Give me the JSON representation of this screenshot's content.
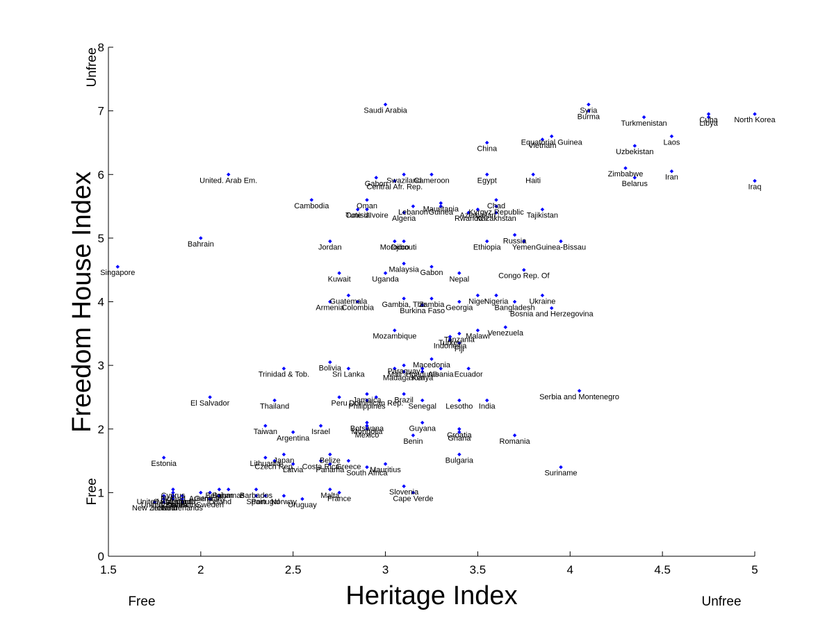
{
  "chart_data": {
    "type": "scatter",
    "title": "",
    "xlabel": "Heritage Index",
    "ylabel": "Freedom House Index",
    "xlim": [
      1.5,
      5
    ],
    "ylim": [
      0,
      8
    ],
    "x_ticks": [
      "1.5",
      "2",
      "2.5",
      "3",
      "3.5",
      "4",
      "4.5",
      "5"
    ],
    "y_ticks": [
      "0",
      "1",
      "2",
      "3",
      "4",
      "5",
      "6",
      "7",
      "8"
    ],
    "x_corner_labels": {
      "low": "Free",
      "high": "Unfree"
    },
    "y_corner_labels": {
      "low": "Free",
      "high": "Unfree"
    },
    "grid": false,
    "marker_color": "#0000ff",
    "points": [
      {
        "label": "Saudi Arabia",
        "x": 3.0,
        "y": 7.1
      },
      {
        "label": "Syria",
        "x": 4.1,
        "y": 7.1
      },
      {
        "label": "Burma",
        "x": 4.1,
        "y": 7.0
      },
      {
        "label": "Turkmenistan",
        "x": 4.4,
        "y": 6.9
      },
      {
        "label": "Cuba",
        "x": 4.75,
        "y": 6.95
      },
      {
        "label": "Libya",
        "x": 4.75,
        "y": 6.9
      },
      {
        "label": "North Korea",
        "x": 5.0,
        "y": 6.95
      },
      {
        "label": "China",
        "x": 3.55,
        "y": 6.5
      },
      {
        "label": "Equatorial Guinea",
        "x": 3.9,
        "y": 6.6
      },
      {
        "label": "Vietnam",
        "x": 3.85,
        "y": 6.55
      },
      {
        "label": "Laos",
        "x": 4.55,
        "y": 6.6
      },
      {
        "label": "Uzbekistan",
        "x": 4.35,
        "y": 6.45
      },
      {
        "label": "United. Arab Em.",
        "x": 2.15,
        "y": 6.0
      },
      {
        "label": "Swaziland",
        "x": 3.1,
        "y": 6.0
      },
      {
        "label": "Cameroon",
        "x": 3.25,
        "y": 6.0
      },
      {
        "label": "Gabon",
        "x": 2.95,
        "y": 5.95
      },
      {
        "label": "Central Afr. Rep.",
        "x": 3.05,
        "y": 5.9
      },
      {
        "label": "Egypt",
        "x": 3.55,
        "y": 6.0
      },
      {
        "label": "Haiti",
        "x": 3.8,
        "y": 6.0
      },
      {
        "label": "Zimbabwe",
        "x": 4.3,
        "y": 6.1
      },
      {
        "label": "Belarus",
        "x": 4.35,
        "y": 5.95
      },
      {
        "label": "Iran",
        "x": 4.55,
        "y": 6.05
      },
      {
        "label": "Iraq",
        "x": 5.0,
        "y": 5.9
      },
      {
        "label": "Cambodia",
        "x": 2.6,
        "y": 5.6
      },
      {
        "label": "Oman",
        "x": 2.9,
        "y": 5.6
      },
      {
        "label": "Tunisia",
        "x": 2.85,
        "y": 5.45
      },
      {
        "label": "Cote d'Ivoire",
        "x": 2.9,
        "y": 5.45
      },
      {
        "label": "Lebanon",
        "x": 3.15,
        "y": 5.5
      },
      {
        "label": "Algeria",
        "x": 3.1,
        "y": 5.4
      },
      {
        "label": "Mauritania",
        "x": 3.3,
        "y": 5.55
      },
      {
        "label": "Guinea",
        "x": 3.3,
        "y": 5.5
      },
      {
        "label": "Chad",
        "x": 3.6,
        "y": 5.6
      },
      {
        "label": "Kyrgyz Republic",
        "x": 3.6,
        "y": 5.5
      },
      {
        "label": "Azerbaijan",
        "x": 3.5,
        "y": 5.45
      },
      {
        "label": "Rwanda",
        "x": 3.45,
        "y": 5.4
      },
      {
        "label": "Kazakhstan",
        "x": 3.6,
        "y": 5.4
      },
      {
        "label": "Tajikistan",
        "x": 3.85,
        "y": 5.45
      },
      {
        "label": "Bahrain",
        "x": 2.0,
        "y": 5.0
      },
      {
        "label": "Jordan",
        "x": 2.7,
        "y": 4.95
      },
      {
        "label": "Morocco",
        "x": 3.05,
        "y": 4.95
      },
      {
        "label": "Djibouti",
        "x": 3.1,
        "y": 4.95
      },
      {
        "label": "Ethiopia",
        "x": 3.55,
        "y": 4.95
      },
      {
        "label": "Russia",
        "x": 3.7,
        "y": 5.05
      },
      {
        "label": "Yemen",
        "x": 3.75,
        "y": 4.95
      },
      {
        "label": "Guinea-Bissau",
        "x": 3.95,
        "y": 4.95
      },
      {
        "label": "Singapore",
        "x": 1.55,
        "y": 4.55
      },
      {
        "label": "Malaysia",
        "x": 3.1,
        "y": 4.6
      },
      {
        "label": "Uganda",
        "x": 3.0,
        "y": 4.45
      },
      {
        "label": "Gabon",
        "x": 3.25,
        "y": 4.55
      },
      {
        "label": "Kuwait",
        "x": 2.75,
        "y": 4.45
      },
      {
        "label": "Nepal",
        "x": 3.4,
        "y": 4.45
      },
      {
        "label": "Congo Rep. Of",
        "x": 3.75,
        "y": 4.5
      },
      {
        "label": "Guatemala",
        "x": 2.8,
        "y": 4.1
      },
      {
        "label": "Armenia",
        "x": 2.7,
        "y": 4.0
      },
      {
        "label": "Colombia",
        "x": 2.85,
        "y": 4.0
      },
      {
        "label": "Gambia, The",
        "x": 3.1,
        "y": 4.05
      },
      {
        "label": "Zambia",
        "x": 3.25,
        "y": 4.05
      },
      {
        "label": "Burkina Faso",
        "x": 3.2,
        "y": 3.95
      },
      {
        "label": "Georgia",
        "x": 3.4,
        "y": 4.0
      },
      {
        "label": "Niger",
        "x": 3.5,
        "y": 4.1
      },
      {
        "label": "Nigeria",
        "x": 3.6,
        "y": 4.1
      },
      {
        "label": "Bangladesh",
        "x": 3.7,
        "y": 4.0
      },
      {
        "label": "Ukraine",
        "x": 3.85,
        "y": 4.1
      },
      {
        "label": "Bosnia and Herzegovina",
        "x": 3.9,
        "y": 3.9
      },
      {
        "label": "Mozambique",
        "x": 3.05,
        "y": 3.55
      },
      {
        "label": "Tanzania",
        "x": 3.4,
        "y": 3.5
      },
      {
        "label": "Malawi",
        "x": 3.5,
        "y": 3.55
      },
      {
        "label": "Venezuela",
        "x": 3.65,
        "y": 3.6
      },
      {
        "label": "Turkey",
        "x": 3.35,
        "y": 3.45
      },
      {
        "label": "Indonesia",
        "x": 3.35,
        "y": 3.4
      },
      {
        "label": "Fiji",
        "x": 3.4,
        "y": 3.35
      },
      {
        "label": "Bolivia",
        "x": 2.7,
        "y": 3.05
      },
      {
        "label": "Sri Lanka",
        "x": 2.8,
        "y": 2.95
      },
      {
        "label": "Trinidad & Tob.",
        "x": 2.45,
        "y": 2.95
      },
      {
        "label": "Paraguay",
        "x": 3.1,
        "y": 3.0
      },
      {
        "label": "Macedonia",
        "x": 3.25,
        "y": 3.1
      },
      {
        "label": "Madagascar",
        "x": 3.1,
        "y": 2.9
      },
      {
        "label": "Mali",
        "x": 3.05,
        "y": 2.95
      },
      {
        "label": "Honduras",
        "x": 3.2,
        "y": 2.95
      },
      {
        "label": "Kenya",
        "x": 3.2,
        "y": 2.9
      },
      {
        "label": "Albania",
        "x": 3.3,
        "y": 2.95
      },
      {
        "label": "Ecuador",
        "x": 3.45,
        "y": 2.95
      },
      {
        "label": "Serbia and Montenegro",
        "x": 4.05,
        "y": 2.6
      },
      {
        "label": "El Salvador",
        "x": 2.05,
        "y": 2.5
      },
      {
        "label": "Thailand",
        "x": 2.4,
        "y": 2.45
      },
      {
        "label": "Peru",
        "x": 2.75,
        "y": 2.5
      },
      {
        "label": "Jamaica",
        "x": 2.9,
        "y": 2.55
      },
      {
        "label": "Dominican Rep.",
        "x": 2.95,
        "y": 2.5
      },
      {
        "label": "Philippines",
        "x": 2.9,
        "y": 2.45
      },
      {
        "label": "Brazil",
        "x": 3.1,
        "y": 2.55
      },
      {
        "label": "Senegal",
        "x": 3.2,
        "y": 2.45
      },
      {
        "label": "Lesotho",
        "x": 3.4,
        "y": 2.45
      },
      {
        "label": "India",
        "x": 3.55,
        "y": 2.45
      },
      {
        "label": "Taiwan",
        "x": 2.35,
        "y": 2.05
      },
      {
        "label": "Argentina",
        "x": 2.5,
        "y": 1.95
      },
      {
        "label": "Israel",
        "x": 2.65,
        "y": 2.05
      },
      {
        "label": "Botswana",
        "x": 2.9,
        "y": 2.1
      },
      {
        "label": "Mongolia",
        "x": 2.9,
        "y": 2.05
      },
      {
        "label": "Mexico",
        "x": 2.9,
        "y": 2.0
      },
      {
        "label": "Guyana",
        "x": 3.2,
        "y": 2.1
      },
      {
        "label": "Benin",
        "x": 3.15,
        "y": 1.9
      },
      {
        "label": "Croatia",
        "x": 3.4,
        "y": 2.0
      },
      {
        "label": "Ghana",
        "x": 3.4,
        "y": 1.95
      },
      {
        "label": "Romania",
        "x": 3.7,
        "y": 1.9
      },
      {
        "label": "Estonia",
        "x": 1.8,
        "y": 1.55
      },
      {
        "label": "Japan",
        "x": 2.45,
        "y": 1.6
      },
      {
        "label": "Lithuania",
        "x": 2.35,
        "y": 1.55
      },
      {
        "label": "Czech Rep.",
        "x": 2.4,
        "y": 1.5
      },
      {
        "label": "Latvia",
        "x": 2.5,
        "y": 1.45
      },
      {
        "label": "Belize",
        "x": 2.7,
        "y": 1.6
      },
      {
        "label": "Costa Rica",
        "x": 2.65,
        "y": 1.5
      },
      {
        "label": "Greece",
        "x": 2.8,
        "y": 1.5
      },
      {
        "label": "Panama",
        "x": 2.7,
        "y": 1.45
      },
      {
        "label": "South Africa",
        "x": 2.9,
        "y": 1.4
      },
      {
        "label": "Mauritius",
        "x": 3.0,
        "y": 1.45
      },
      {
        "label": "Bulgaria",
        "x": 3.4,
        "y": 1.6
      },
      {
        "label": "Suriname",
        "x": 3.95,
        "y": 1.4
      },
      {
        "label": "Malta",
        "x": 2.7,
        "y": 1.05
      },
      {
        "label": "France",
        "x": 2.75,
        "y": 1.0
      },
      {
        "label": "Slovenia",
        "x": 3.1,
        "y": 1.1
      },
      {
        "label": "Cape Verde",
        "x": 3.15,
        "y": 1.0
      },
      {
        "label": "Uruguay",
        "x": 2.55,
        "y": 0.9
      },
      {
        "label": "Barbados",
        "x": 2.3,
        "y": 1.05
      },
      {
        "label": "Portugal",
        "x": 2.35,
        "y": 0.95
      },
      {
        "label": "Norway",
        "x": 2.45,
        "y": 0.95
      },
      {
        "label": "Spain",
        "x": 2.3,
        "y": 0.95
      },
      {
        "label": "Belgium",
        "x": 2.1,
        "y": 1.05
      },
      {
        "label": "Bahamas",
        "x": 2.15,
        "y": 1.05
      },
      {
        "label": "Germany",
        "x": 2.05,
        "y": 1.0
      },
      {
        "label": "Austria",
        "x": 2.0,
        "y": 1.0
      },
      {
        "label": "Iceland",
        "x": 2.1,
        "y": 0.95
      },
      {
        "label": "Sweden",
        "x": 2.05,
        "y": 0.9
      },
      {
        "label": "Cyprus",
        "x": 1.85,
        "y": 1.05
      },
      {
        "label": "Finland",
        "x": 1.85,
        "y": 1.0
      },
      {
        "label": "Canada",
        "x": 1.9,
        "y": 0.95
      },
      {
        "label": "United Kingdom",
        "x": 1.8,
        "y": 0.95
      },
      {
        "label": "United States",
        "x": 1.8,
        "y": 0.9
      },
      {
        "label": "Australia",
        "x": 1.85,
        "y": 0.9
      },
      {
        "label": "Denmark",
        "x": 1.9,
        "y": 0.9
      },
      {
        "label": "Switzerland",
        "x": 1.85,
        "y": 0.95
      },
      {
        "label": "Ireland",
        "x": 1.8,
        "y": 0.85
      },
      {
        "label": "New Zealand",
        "x": 1.75,
        "y": 0.85
      },
      {
        "label": "Netherlands",
        "x": 1.9,
        "y": 0.85
      }
    ]
  }
}
